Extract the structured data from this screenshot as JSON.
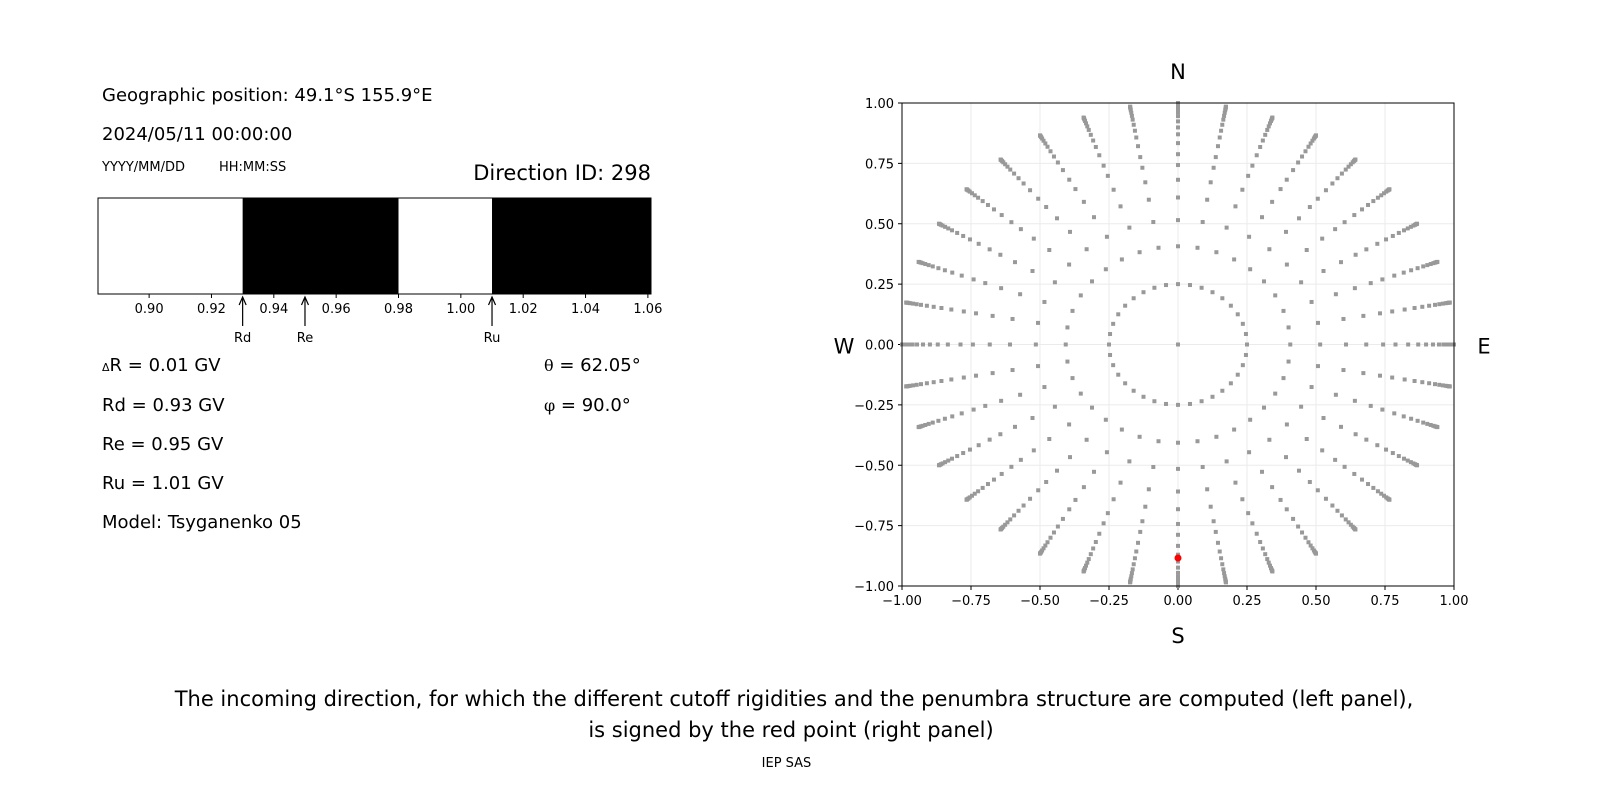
{
  "left_panel": {
    "geo_position": "Geographic position: 49.1°S 155.9°E",
    "datetime": "2024/05/11 00:00:00",
    "date_format": "YYYY/MM/DD",
    "time_format": "HH:MM:SS",
    "direction_id": "Direction ID: 298",
    "delta_r_symbol": "Δ",
    "delta_r": "R = 0.01 GV",
    "rd": "Rd = 0.93 GV",
    "re": "Re = 0.95 GV",
    "ru": "Ru = 1.01 GV",
    "model": "Model: Tsyganenko 05",
    "theta_symbol": "θ",
    "theta": " = 62.05°",
    "phi_symbol": "φ",
    "phi": " = 90.0°"
  },
  "caption": {
    "line1": "The incoming direction, for which the different cutoff rigidities and the penumbra structure are computed (left panel),",
    "line2": "is signed by the red point (right panel)",
    "credit": "IEP SAS"
  },
  "chart_data": [
    {
      "type": "bar",
      "description_kind": "penumbra",
      "xlim": [
        0.8836,
        1.061
      ],
      "xticks": [
        "0.90",
        "0.92",
        "0.94",
        "0.96",
        "0.98",
        "1.00",
        "1.02",
        "1.04",
        "1.06"
      ],
      "segments": [
        {
          "from": 0.8836,
          "to": 0.93,
          "color": "#ffffff"
        },
        {
          "from": 0.93,
          "to": 0.98,
          "color": "#000000"
        },
        {
          "from": 0.98,
          "to": 1.01,
          "color": "#ffffff"
        },
        {
          "from": 1.01,
          "to": 1.061,
          "color": "#000000"
        }
      ],
      "markers": [
        {
          "label": "Rd",
          "value": 0.93
        },
        {
          "label": "Re",
          "value": 0.95
        },
        {
          "label": "Ru",
          "value": 1.01
        }
      ]
    },
    {
      "type": "scatter",
      "xlim": [
        -1,
        1
      ],
      "ylim": [
        -1,
        1
      ],
      "xticks": [
        "−1.00",
        "−0.75",
        "−0.50",
        "−0.25",
        "0.00",
        "0.25",
        "0.50",
        "0.75",
        "1.00"
      ],
      "yticks": [
        "1.00",
        "0.75",
        "0.50",
        "0.25",
        "0.00",
        "−0.25",
        "−0.50",
        "−0.75",
        "−1.00"
      ],
      "grid": true,
      "compass": {
        "north": "N",
        "south": "S",
        "west": "W",
        "east": "E"
      },
      "point_color": "#999999",
      "highlight_color": "#ff0000",
      "direction_grid": {
        "azimuth_step_deg": 10,
        "inner_ring_radius": 0.25,
        "spoke_zenith_deg": [
          24,
          31,
          37.5,
          43,
          48,
          52,
          56.5,
          60.5,
          64,
          67.5,
          71,
          74,
          77,
          80,
          82.5,
          85,
          87.5,
          90
        ],
        "center_point": [
          0,
          0
        ]
      },
      "highlight_point": {
        "x": 0.0,
        "y": -0.884,
        "theta_deg": 62.05,
        "phi_deg": 90.0
      }
    }
  ]
}
